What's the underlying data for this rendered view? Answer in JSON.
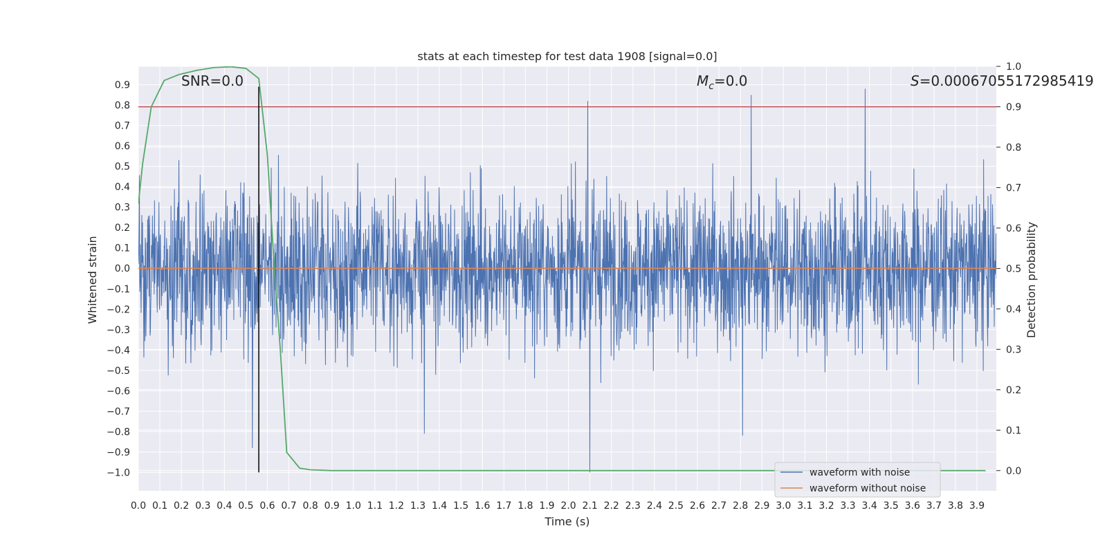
{
  "chart_data": {
    "type": "line",
    "title": "stats at each timestep for test data 1908 [signal=0.0]",
    "xlabel": "Time (s)",
    "ylabel": "Whitened strain",
    "y2label": "Detection probability",
    "xlim": [
      0.0,
      3.99
    ],
    "ylim": [
      -1.09,
      0.99
    ],
    "y2lim": [
      -0.05,
      1.0
    ],
    "x_ticks": [
      "0.0",
      "0.1",
      "0.2",
      "0.3",
      "0.4",
      "0.5",
      "0.6",
      "0.7",
      "0.8",
      "0.9",
      "1.0",
      "1.1",
      "1.2",
      "1.3",
      "1.4",
      "1.5",
      "1.6",
      "1.7",
      "1.8",
      "1.9",
      "2.0",
      "2.1",
      "2.2",
      "2.3",
      "2.4",
      "2.5",
      "2.6",
      "2.7",
      "2.8",
      "2.9",
      "3.0",
      "3.1",
      "3.2",
      "3.3",
      "3.4",
      "3.5",
      "3.6",
      "3.7",
      "3.8",
      "3.9"
    ],
    "y_ticks": [
      "0.9",
      "0.8",
      "0.7",
      "0.6",
      "0.5",
      "0.4",
      "0.3",
      "0.2",
      "0.1",
      "0.0",
      "−0.1",
      "−0.2",
      "−0.3",
      "−0.4",
      "−0.5",
      "−0.6",
      "−0.7",
      "−0.8",
      "−0.9",
      "−1.0"
    ],
    "y2_ticks": [
      "1.0",
      "0.9",
      "0.8",
      "0.7",
      "0.6",
      "0.5",
      "0.4",
      "0.3",
      "0.2",
      "0.1",
      "0.0"
    ],
    "grid": true,
    "legend_position": "lower-right",
    "colors": {
      "noise": "#4c72b0",
      "clean": "#dd8452",
      "probability": "#55a868",
      "threshold": "#c44e52",
      "marker": "#000000",
      "plot_bg": "#eaeaf2",
      "grid": "#ffffff"
    },
    "series": [
      {
        "name": "waveform with noise",
        "axis": "left",
        "note": "dense noise, roughly in [-1.0, 0.89]",
        "peaks": [
          {
            "x": 0.53,
            "y": -0.88
          },
          {
            "x": 1.33,
            "y": -0.81
          },
          {
            "x": 2.09,
            "y": 0.82
          },
          {
            "x": 2.1,
            "y": -1.0
          },
          {
            "x": 2.81,
            "y": -0.82
          },
          {
            "x": 2.85,
            "y": 0.85
          },
          {
            "x": 3.38,
            "y": 0.88
          }
        ]
      },
      {
        "name": "waveform without noise",
        "axis": "left",
        "x": [
          0.0,
          3.99
        ],
        "y": [
          0.0,
          0.0
        ]
      },
      {
        "axis": "right",
        "x": [
          0.0,
          0.02,
          0.06,
          0.12,
          0.19,
          0.27,
          0.35,
          0.43,
          0.5,
          0.56,
          0.6,
          0.63,
          0.66,
          0.69,
          0.75,
          0.8,
          0.9,
          1.0,
          2.0,
          3.0,
          3.94
        ],
        "y": [
          0.66,
          0.76,
          0.9,
          0.965,
          0.98,
          0.99,
          0.997,
          0.999,
          0.995,
          0.97,
          0.78,
          0.52,
          0.3,
          0.045,
          0.006,
          0.002,
          0.0,
          0.0,
          0.0,
          0.0,
          0.0
        ]
      }
    ],
    "threshold_y2": 0.9,
    "marker_x": 0.56,
    "marker_y_range": [
      -1.0,
      0.89
    ],
    "annotations": [
      {
        "text": "SNR=0.0"
      },
      {
        "text": "M",
        "sub": "c",
        "suffix": "=0.0"
      },
      {
        "text": "S",
        "suffix": "=0.00067055172985419"
      }
    ]
  }
}
